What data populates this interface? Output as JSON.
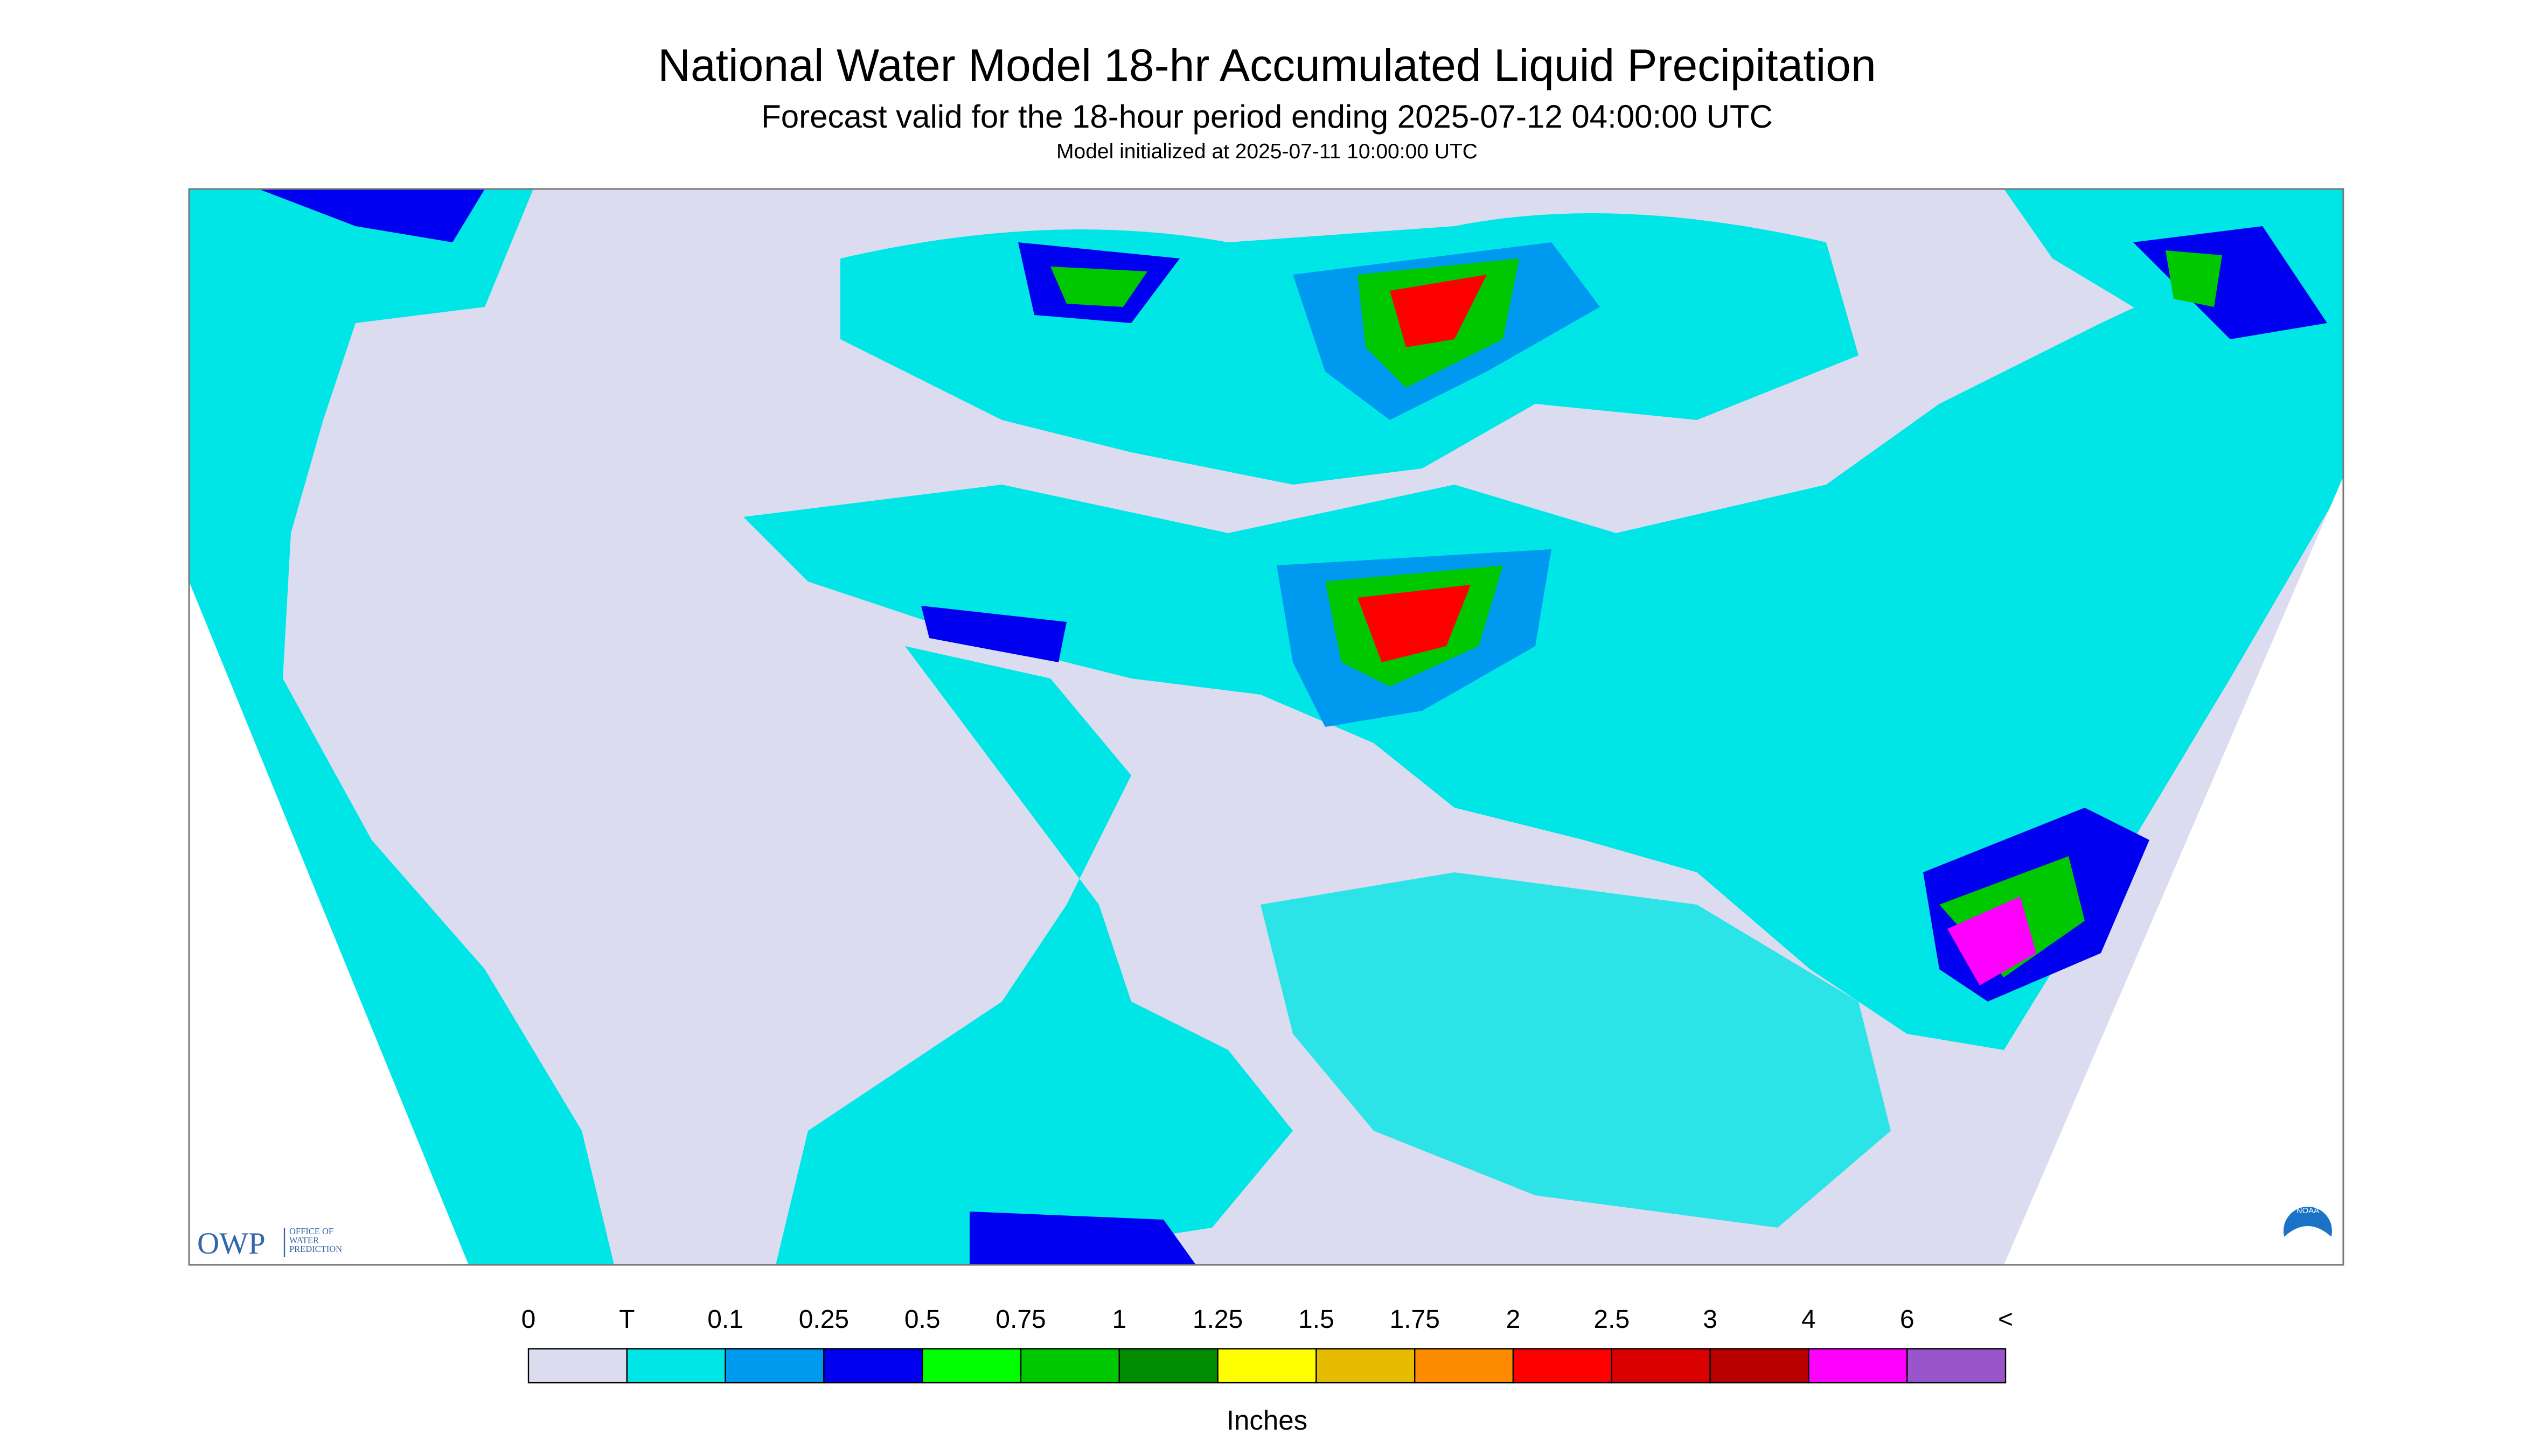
{
  "header": {
    "title": "National Water Model 18-hr Accumulated Liquid Precipitation",
    "subtitle": "Forecast valid for the 18-hour period ending 2025-07-12 04:00:00 UTC",
    "note": "Model initialized at 2025-07-11 10:00:00 UTC"
  },
  "legend": {
    "labels": [
      "0",
      "T",
      "0.1",
      "0.25",
      "0.5",
      "0.75",
      "1",
      "1.25",
      "1.5",
      "1.75",
      "2",
      "2.5",
      "3",
      "4",
      "6",
      "<"
    ],
    "colors": [
      "#dcdcf0",
      "#00e6e6",
      "#0099f0",
      "#0000f0",
      "#00ff00",
      "#00c800",
      "#008c00",
      "#ffff00",
      "#e6bb00",
      "#ff8c00",
      "#ff0000",
      "#d80000",
      "#b80000",
      "#ff00ff",
      "#9955cc"
    ],
    "unit": "Inches"
  },
  "logos": {
    "owp": "OWP",
    "owp_text": [
      "OFFICE OF",
      "WATER",
      "PREDICTION"
    ],
    "noaa": "NOAA"
  }
}
